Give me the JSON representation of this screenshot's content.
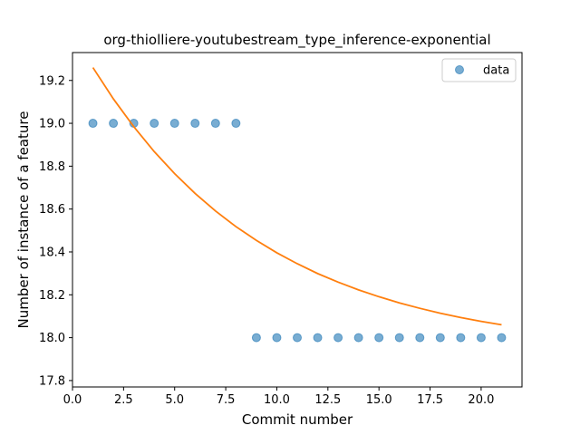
{
  "chart_data": {
    "type": "scatter",
    "title": "org-thiolliere-youtubestream_type_inference-exponential",
    "xlabel": "Commit number",
    "ylabel": "Number of instance of a feature",
    "xlim": [
      0.0,
      22.0
    ],
    "ylim": [
      17.77,
      19.33
    ],
    "xticks": [
      0.0,
      2.5,
      5.0,
      7.5,
      10.0,
      12.5,
      15.0,
      17.5,
      20.0
    ],
    "xtick_labels": [
      "0.0",
      "2.5",
      "5.0",
      "7.5",
      "10.0",
      "12.5",
      "15.0",
      "17.5",
      "20.0"
    ],
    "yticks": [
      17.8,
      18.0,
      18.2,
      18.4,
      18.6,
      18.8,
      19.0,
      19.2
    ],
    "ytick_labels": [
      "17.8",
      "18.0",
      "18.2",
      "18.4",
      "18.6",
      "18.8",
      "19.0",
      "19.2"
    ],
    "grid": false,
    "legend_position": "top-right",
    "series": [
      {
        "name": "data",
        "kind": "scatter",
        "color": "#1f77b4",
        "x": [
          1,
          2,
          3,
          4,
          5,
          6,
          7,
          8,
          9,
          10,
          11,
          12,
          13,
          14,
          15,
          16,
          17,
          18,
          19,
          20,
          21
        ],
        "y": [
          19,
          19,
          19,
          19,
          19,
          19,
          19,
          19,
          18,
          18,
          18,
          18,
          18,
          18,
          18,
          18,
          18,
          18,
          18,
          18,
          18
        ]
      },
      {
        "kind": "line",
        "color": "#ff7f0e",
        "x": [
          1,
          2,
          3,
          4,
          5,
          6,
          7,
          8,
          9,
          10,
          11,
          12,
          13,
          14,
          15,
          16,
          17,
          18,
          19,
          20,
          21
        ],
        "y": [
          19.26,
          19.114,
          18.984,
          18.868,
          18.765,
          18.673,
          18.591,
          18.518,
          18.454,
          18.396,
          18.345,
          18.299,
          18.259,
          18.223,
          18.191,
          18.162,
          18.137,
          18.114,
          18.094,
          18.076,
          18.06
        ]
      }
    ]
  }
}
